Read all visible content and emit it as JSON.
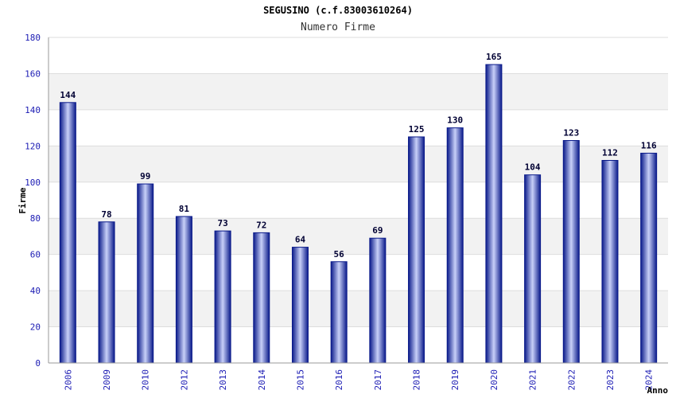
{
  "chart_data": {
    "type": "bar",
    "title": "SEGUSINO (c.f.83003610264)",
    "subtitle": "Numero Firme",
    "xlabel": "Anno",
    "ylabel": "Firme",
    "ylim": [
      0,
      180
    ],
    "yticks": [
      0,
      20,
      40,
      60,
      80,
      100,
      120,
      140,
      160,
      180
    ],
    "grid": "horizontal-bands",
    "categories": [
      "2006",
      "2009",
      "2010",
      "2012",
      "2013",
      "2014",
      "2015",
      "2016",
      "2017",
      "2018",
      "2019",
      "2020",
      "2021",
      "2022",
      "2023",
      "2024"
    ],
    "values": [
      144,
      78,
      99,
      81,
      73,
      72,
      64,
      56,
      69,
      125,
      130,
      165,
      104,
      123,
      112,
      116
    ]
  },
  "colors": {
    "bar_dark": "#0a1a8a",
    "bar_light": "#c8d0f8",
    "band": "#f2f2f2",
    "axis_text": "#1c1cb4",
    "label_text": "#000033"
  }
}
